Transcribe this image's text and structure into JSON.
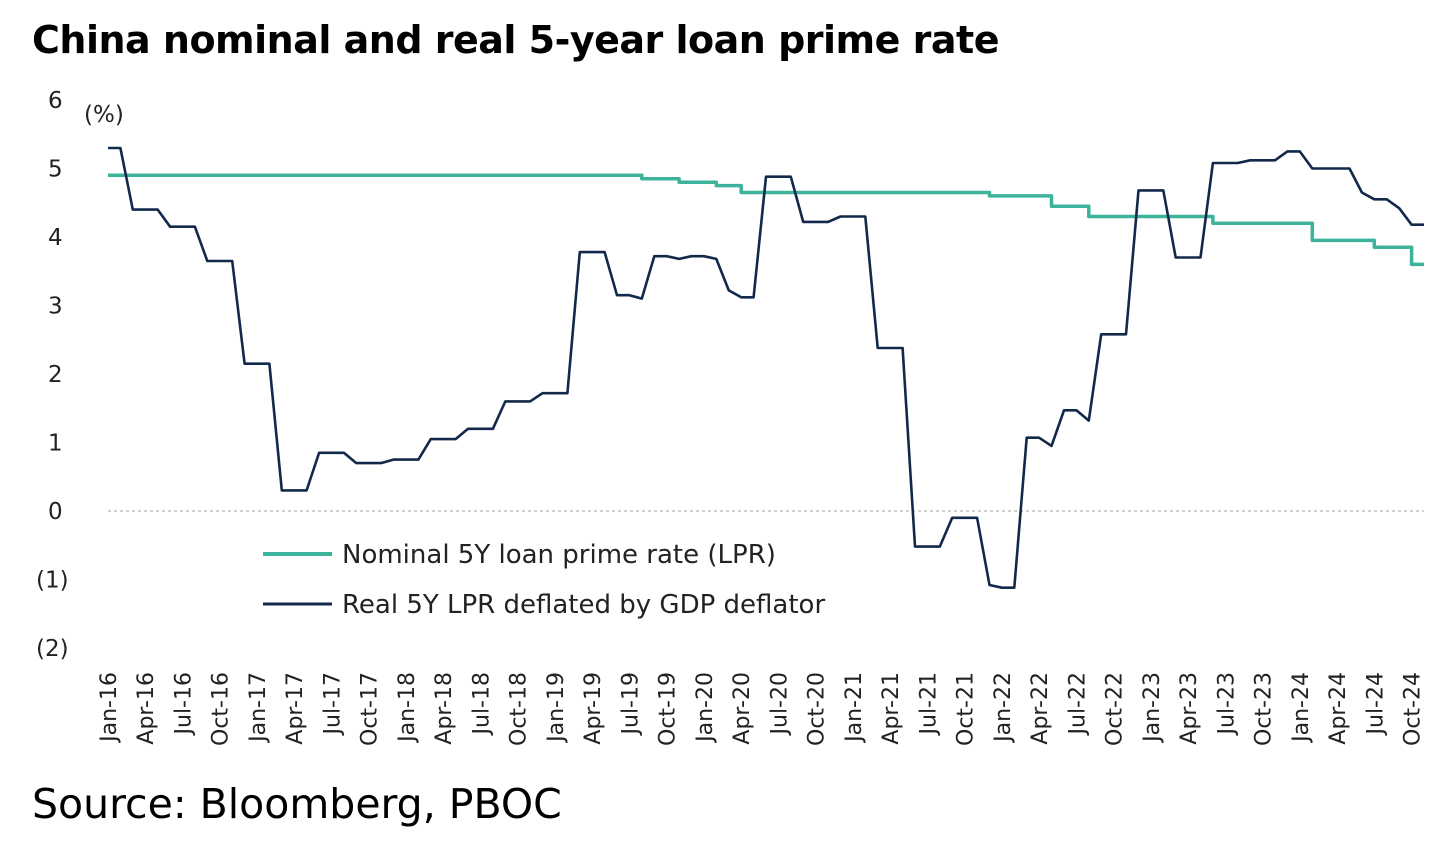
{
  "title": "China nominal and real 5-year loan prime rate",
  "source": "Source: Bloomberg, PBOC",
  "chart_data": {
    "type": "line",
    "title": "China nominal and real 5-year loan prime rate",
    "ylabel": "(%)",
    "ylim": [
      -2,
      6
    ],
    "yticks": [
      6,
      5,
      4,
      3,
      2,
      1,
      0,
      -1,
      -2
    ],
    "ytick_labels": [
      "6",
      "5",
      "4",
      "3",
      "2",
      "1",
      "0",
      "(1)",
      "(2)"
    ],
    "x_start": "2016-01",
    "x_end": "2024-11",
    "xtick_labels": [
      "Jan-16",
      "Apr-16",
      "Jul-16",
      "Oct-16",
      "Jan-17",
      "Apr-17",
      "Jul-17",
      "Oct-17",
      "Jan-18",
      "Apr-18",
      "Jul-18",
      "Oct-18",
      "Jan-19",
      "Apr-19",
      "Jul-19",
      "Oct-19",
      "Jan-20",
      "Apr-20",
      "Jul-20",
      "Oct-20",
      "Jan-21",
      "Apr-21",
      "Jul-21",
      "Oct-21",
      "Jan-22",
      "Apr-22",
      "Jul-22",
      "Oct-22",
      "Jan-23",
      "Apr-23",
      "Jul-23",
      "Oct-23",
      "Jan-24",
      "Apr-24",
      "Jul-24",
      "Oct-24"
    ],
    "legend_position": "bottom-left inside",
    "zero_line": true,
    "series": [
      {
        "name": "Nominal 5Y loan prime rate (LPR)",
        "color": "#3cb39a",
        "points": [
          [
            "2016-01",
            4.9
          ],
          [
            "2019-08",
            4.9
          ],
          [
            "2019-08",
            4.85
          ],
          [
            "2019-11",
            4.85
          ],
          [
            "2019-11",
            4.8
          ],
          [
            "2020-02",
            4.8
          ],
          [
            "2020-02",
            4.75
          ],
          [
            "2020-04",
            4.75
          ],
          [
            "2020-04",
            4.65
          ],
          [
            "2021-12",
            4.65
          ],
          [
            "2021-12",
            4.6
          ],
          [
            "2022-05",
            4.6
          ],
          [
            "2022-05",
            4.45
          ],
          [
            "2022-08",
            4.45
          ],
          [
            "2022-08",
            4.3
          ],
          [
            "2023-06",
            4.3
          ],
          [
            "2023-06",
            4.2
          ],
          [
            "2024-02",
            4.2
          ],
          [
            "2024-02",
            3.95
          ],
          [
            "2024-07",
            3.95
          ],
          [
            "2024-07",
            3.85
          ],
          [
            "2024-10",
            3.85
          ],
          [
            "2024-10",
            3.6
          ],
          [
            "2024-11",
            3.6
          ]
        ]
      },
      {
        "name": "Real 5Y LPR deflated by GDP deflator",
        "color": "#13294b",
        "points": [
          [
            "2016-01",
            5.3
          ],
          [
            "2016-02",
            5.3
          ],
          [
            "2016-03",
            4.4
          ],
          [
            "2016-05",
            4.4
          ],
          [
            "2016-06",
            4.15
          ],
          [
            "2016-08",
            4.15
          ],
          [
            "2016-09",
            3.65
          ],
          [
            "2016-11",
            3.65
          ],
          [
            "2016-12",
            2.15
          ],
          [
            "2017-02",
            2.15
          ],
          [
            "2017-03",
            0.3
          ],
          [
            "2017-05",
            0.3
          ],
          [
            "2017-06",
            0.85
          ],
          [
            "2017-08",
            0.85
          ],
          [
            "2017-09",
            0.7
          ],
          [
            "2017-11",
            0.7
          ],
          [
            "2017-12",
            0.75
          ],
          [
            "2018-02",
            0.75
          ],
          [
            "2018-03",
            1.05
          ],
          [
            "2018-05",
            1.05
          ],
          [
            "2018-06",
            1.2
          ],
          [
            "2018-08",
            1.2
          ],
          [
            "2018-09",
            1.6
          ],
          [
            "2018-11",
            1.6
          ],
          [
            "2018-12",
            1.72
          ],
          [
            "2019-02",
            1.72
          ],
          [
            "2019-03",
            3.78
          ],
          [
            "2019-05",
            3.78
          ],
          [
            "2019-06",
            3.15
          ],
          [
            "2019-07",
            3.15
          ],
          [
            "2019-08",
            3.1
          ],
          [
            "2019-09",
            3.72
          ],
          [
            "2019-10",
            3.72
          ],
          [
            "2019-11",
            3.68
          ],
          [
            "2019-12",
            3.72
          ],
          [
            "2020-01",
            3.72
          ],
          [
            "2020-02",
            3.68
          ],
          [
            "2020-03",
            3.22
          ],
          [
            "2020-04",
            3.12
          ],
          [
            "2020-05",
            3.12
          ],
          [
            "2020-06",
            4.88
          ],
          [
            "2020-08",
            4.88
          ],
          [
            "2020-09",
            4.22
          ],
          [
            "2020-11",
            4.22
          ],
          [
            "2020-12",
            4.3
          ],
          [
            "2021-02",
            4.3
          ],
          [
            "2021-03",
            2.38
          ],
          [
            "2021-05",
            2.38
          ],
          [
            "2021-06",
            -0.52
          ],
          [
            "2021-08",
            -0.52
          ],
          [
            "2021-09",
            -0.1
          ],
          [
            "2021-11",
            -0.1
          ],
          [
            "2021-12",
            -1.08
          ],
          [
            "2022-01",
            -1.12
          ],
          [
            "2022-02",
            -1.12
          ],
          [
            "2022-03",
            1.07
          ],
          [
            "2022-04",
            1.07
          ],
          [
            "2022-05",
            0.95
          ],
          [
            "2022-06",
            1.47
          ],
          [
            "2022-07",
            1.47
          ],
          [
            "2022-08",
            1.32
          ],
          [
            "2022-09",
            2.58
          ],
          [
            "2022-11",
            2.58
          ],
          [
            "2022-12",
            4.68
          ],
          [
            "2023-02",
            4.68
          ],
          [
            "2023-03",
            3.7
          ],
          [
            "2023-05",
            3.7
          ],
          [
            "2023-06",
            5.08
          ],
          [
            "2023-08",
            5.08
          ],
          [
            "2023-09",
            5.12
          ],
          [
            "2023-11",
            5.12
          ],
          [
            "2023-12",
            5.25
          ],
          [
            "2024-01",
            5.25
          ],
          [
            "2024-02",
            5.0
          ],
          [
            "2024-05",
            5.0
          ],
          [
            "2024-06",
            4.65
          ],
          [
            "2024-07",
            4.55
          ],
          [
            "2024-08",
            4.55
          ],
          [
            "2024-09",
            4.42
          ],
          [
            "2024-10",
            4.18
          ],
          [
            "2024-11",
            4.18
          ]
        ]
      }
    ]
  }
}
